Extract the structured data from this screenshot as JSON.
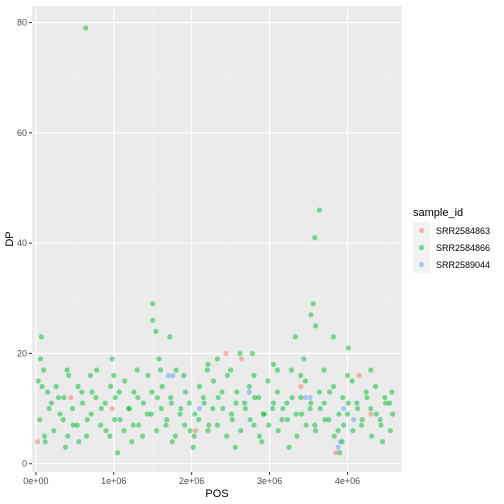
{
  "chart_data": {
    "type": "scatter",
    "xlabel": "POS",
    "ylabel": "DP",
    "xlim": [
      -50000,
      4700000
    ],
    "ylim": [
      -1.5,
      83
    ],
    "x_ticks": [
      0,
      1000000,
      2000000,
      3000000,
      4000000
    ],
    "x_tick_labels": [
      "0e+00",
      "1e+06",
      "2e+06",
      "3e+06",
      "4e+06"
    ],
    "y_ticks": [
      0,
      20,
      40,
      60,
      80
    ],
    "y_tick_labels": [
      "0",
      "20",
      "40",
      "60",
      "80"
    ],
    "grid": true,
    "legend": {
      "title": "sample_id",
      "position": "right"
    },
    "point_alpha": 0.5,
    "series": [
      {
        "name": "SRR2584863",
        "color": "#F8766D",
        "points": [
          [
            20000,
            4
          ],
          [
            450000,
            12
          ],
          [
            980000,
            10
          ],
          [
            2050000,
            6
          ],
          [
            2440000,
            20
          ],
          [
            2640000,
            19
          ],
          [
            3400000,
            14
          ],
          [
            3850000,
            2
          ],
          [
            4150000,
            16
          ],
          [
            4300000,
            9
          ]
        ]
      },
      {
        "name": "SRR2584866",
        "color": "#00BA38",
        "points": [
          [
            640000,
            79
          ],
          [
            3640000,
            46
          ],
          [
            3580000,
            41
          ],
          [
            1500000,
            29
          ],
          [
            3560000,
            29
          ],
          [
            1500000,
            26
          ],
          [
            3530000,
            27
          ],
          [
            1540000,
            24
          ],
          [
            70000,
            23
          ],
          [
            1720000,
            23
          ],
          [
            3330000,
            23
          ],
          [
            3820000,
            23
          ],
          [
            3590000,
            25
          ],
          [
            60000,
            19
          ],
          [
            2780000,
            20
          ],
          [
            2330000,
            19
          ],
          [
            980000,
            19
          ],
          [
            2620000,
            20
          ],
          [
            4010000,
            21
          ],
          [
            1580000,
            19
          ],
          [
            2210000,
            18
          ],
          [
            3050000,
            18
          ],
          [
            3440000,
            19
          ],
          [
            30000,
            15
          ],
          [
            80000,
            14
          ],
          [
            150000,
            13
          ],
          [
            200000,
            11
          ],
          [
            260000,
            14
          ],
          [
            310000,
            9
          ],
          [
            360000,
            12
          ],
          [
            420000,
            16
          ],
          [
            480000,
            7
          ],
          [
            540000,
            14
          ],
          [
            600000,
            11
          ],
          [
            660000,
            8
          ],
          [
            720000,
            13
          ],
          [
            780000,
            17
          ],
          [
            840000,
            10
          ],
          [
            900000,
            6
          ],
          [
            960000,
            14
          ],
          [
            1020000,
            12
          ],
          [
            1080000,
            8
          ],
          [
            1140000,
            15
          ],
          [
            1200000,
            10
          ],
          [
            1260000,
            13
          ],
          [
            1320000,
            7
          ],
          [
            1380000,
            11
          ],
          [
            1440000,
            16
          ],
          [
            1480000,
            9
          ],
          [
            1560000,
            12
          ],
          [
            1620000,
            14
          ],
          [
            1680000,
            8
          ],
          [
            1740000,
            11
          ],
          [
            1800000,
            17
          ],
          [
            1860000,
            10
          ],
          [
            1920000,
            13
          ],
          [
            1980000,
            6
          ],
          [
            2040000,
            9
          ],
          [
            2100000,
            14
          ],
          [
            2160000,
            11
          ],
          [
            2220000,
            7
          ],
          [
            2280000,
            15
          ],
          [
            2340000,
            12
          ],
          [
            2400000,
            10
          ],
          [
            2460000,
            16
          ],
          [
            2520000,
            8
          ],
          [
            2580000,
            13
          ],
          [
            2680000,
            11
          ],
          [
            2740000,
            14
          ],
          [
            2800000,
            7
          ],
          [
            2860000,
            12
          ],
          [
            2920000,
            9
          ],
          [
            2980000,
            15
          ],
          [
            3040000,
            10
          ],
          [
            3100000,
            13
          ],
          [
            3160000,
            8
          ],
          [
            3220000,
            11
          ],
          [
            3280000,
            17
          ],
          [
            3340000,
            9
          ],
          [
            3400000,
            12
          ],
          [
            3460000,
            15
          ],
          [
            3520000,
            10
          ],
          [
            3580000,
            7
          ],
          [
            3640000,
            13
          ],
          [
            3700000,
            11
          ],
          [
            3760000,
            8
          ],
          [
            3820000,
            14
          ],
          [
            3880000,
            6
          ],
          [
            3940000,
            12
          ],
          [
            4000000,
            9
          ],
          [
            4060000,
            15
          ],
          [
            4120000,
            11
          ],
          [
            4180000,
            7
          ],
          [
            4240000,
            13
          ],
          [
            4300000,
            10
          ],
          [
            4360000,
            14
          ],
          [
            4420000,
            8
          ],
          [
            4480000,
            12
          ],
          [
            4540000,
            11
          ],
          [
            50000,
            8
          ],
          [
            110000,
            5
          ],
          [
            170000,
            10
          ],
          [
            230000,
            6
          ],
          [
            290000,
            12
          ],
          [
            350000,
            8
          ],
          [
            410000,
            5
          ],
          [
            470000,
            10
          ],
          [
            530000,
            7
          ],
          [
            590000,
            13
          ],
          [
            650000,
            5
          ],
          [
            710000,
            9
          ],
          [
            770000,
            12
          ],
          [
            830000,
            7
          ],
          [
            890000,
            11
          ],
          [
            950000,
            5
          ],
          [
            1010000,
            8
          ],
          [
            1070000,
            13
          ],
          [
            1130000,
            6
          ],
          [
            1190000,
            10
          ],
          [
            1250000,
            7
          ],
          [
            1310000,
            12
          ],
          [
            1370000,
            5
          ],
          [
            1430000,
            9
          ],
          [
            1490000,
            13
          ],
          [
            1550000,
            6
          ],
          [
            1610000,
            10
          ],
          [
            1670000,
            7
          ],
          [
            1730000,
            12
          ],
          [
            1790000,
            5
          ],
          [
            1850000,
            9
          ],
          [
            1910000,
            7
          ],
          [
            1970000,
            11
          ],
          [
            2030000,
            5
          ],
          [
            2090000,
            8
          ],
          [
            2150000,
            12
          ],
          [
            2210000,
            6
          ],
          [
            2270000,
            10
          ],
          [
            2330000,
            7
          ],
          [
            2390000,
            13
          ],
          [
            2450000,
            5
          ],
          [
            2510000,
            9
          ],
          [
            2570000,
            11
          ],
          [
            2630000,
            6
          ],
          [
            2690000,
            10
          ],
          [
            2750000,
            8
          ],
          [
            2810000,
            12
          ],
          [
            2870000,
            5
          ],
          [
            2930000,
            9
          ],
          [
            2990000,
            7
          ],
          [
            3050000,
            11
          ],
          [
            3110000,
            6
          ],
          [
            3170000,
            10
          ],
          [
            3230000,
            8
          ],
          [
            3290000,
            12
          ],
          [
            3350000,
            5
          ],
          [
            3410000,
            9
          ],
          [
            3470000,
            7
          ],
          [
            3530000,
            11
          ],
          [
            3590000,
            6
          ],
          [
            3650000,
            10
          ],
          [
            3710000,
            8
          ],
          [
            3770000,
            13
          ],
          [
            3830000,
            5
          ],
          [
            3890000,
            9
          ],
          [
            3950000,
            7
          ],
          [
            4010000,
            11
          ],
          [
            4070000,
            6
          ],
          [
            4130000,
            10
          ],
          [
            4190000,
            8
          ],
          [
            4250000,
            12
          ],
          [
            4310000,
            5
          ],
          [
            4370000,
            9
          ],
          [
            4430000,
            7
          ],
          [
            4490000,
            11
          ],
          [
            4550000,
            6
          ],
          [
            100000,
            17
          ],
          [
            400000,
            17
          ],
          [
            700000,
            16
          ],
          [
            1000000,
            16
          ],
          [
            1300000,
            17
          ],
          [
            1600000,
            17
          ],
          [
            1900000,
            16
          ],
          [
            2200000,
            17
          ],
          [
            2500000,
            17
          ],
          [
            2800000,
            16
          ],
          [
            3100000,
            17
          ],
          [
            3400000,
            16
          ],
          [
            3700000,
            17
          ],
          [
            4000000,
            16
          ],
          [
            4300000,
            17
          ],
          [
            4570000,
            13
          ],
          [
            4580000,
            9
          ],
          [
            380000,
            3
          ],
          [
            1050000,
            2
          ],
          [
            2020000,
            3
          ],
          [
            3900000,
            2
          ],
          [
            3930000,
            4
          ],
          [
            2900000,
            4
          ],
          [
            1750000,
            4
          ],
          [
            550000,
            4
          ],
          [
            2560000,
            3
          ],
          [
            3250000,
            3
          ],
          [
            4450000,
            4
          ],
          [
            120000,
            4
          ],
          [
            1230000,
            4
          ]
        ]
      },
      {
        "name": "SRR2589044",
        "color": "#619CFF",
        "points": [
          [
            1700000,
            16
          ],
          [
            1760000,
            16
          ],
          [
            3460000,
            12
          ],
          [
            3520000,
            12
          ],
          [
            2100000,
            10
          ],
          [
            3910000,
            4
          ],
          [
            3880000,
            3
          ],
          [
            4080000,
            8
          ],
          [
            2740000,
            13
          ],
          [
            3950000,
            10
          ]
        ]
      }
    ]
  }
}
